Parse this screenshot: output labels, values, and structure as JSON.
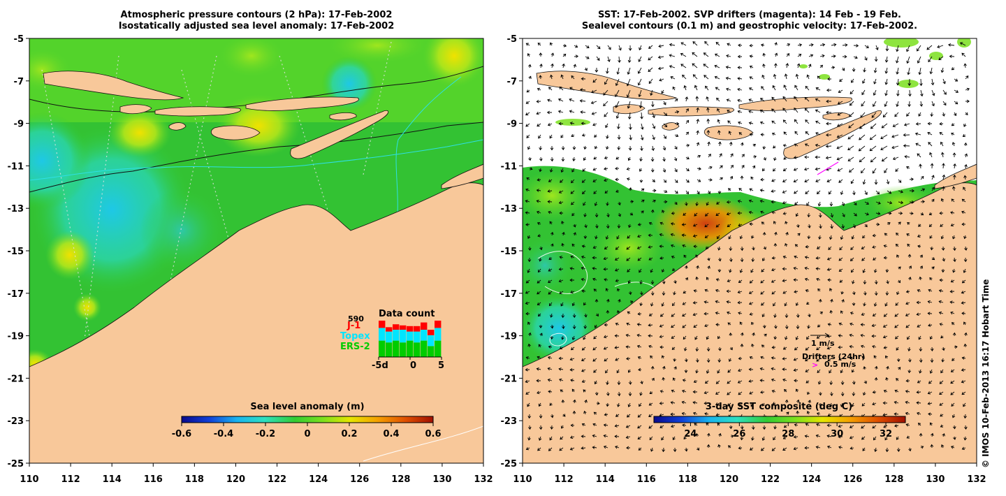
{
  "left_panel": {
    "title_line1": "Atmospheric pressure contours (2 hPa): 17-Feb-2002",
    "title_line2": "Isostatically adjusted sea level anomaly: 17-Feb-2002",
    "colorbar": {
      "title": "Sea level anomaly (m)",
      "ticks": [
        "-0.6",
        "-0.4",
        "-0.2",
        "0",
        "0.2",
        "0.4",
        "0.6"
      ],
      "range": [
        -0.6,
        0.6
      ],
      "colors": [
        "#0a0a8c",
        "#1040d8",
        "#19b4f0",
        "#2ee0c0",
        "#33cc33",
        "#7be01e",
        "#e6e600",
        "#f5a000",
        "#e05000",
        "#a01000"
      ]
    },
    "data_count": {
      "title": "Data count",
      "max_label": "590",
      "missions": [
        {
          "name": "J-1",
          "color": "#ff0000"
        },
        {
          "name": "Topex",
          "color": "#00e5ff"
        },
        {
          "name": "ERS-2",
          "color": "#00cc00"
        }
      ],
      "x_ticks": [
        "-5d",
        "0",
        "5"
      ],
      "bars": [
        {
          "ers2": 0.45,
          "topex": 0.35,
          "j1": 0.2
        },
        {
          "ers2": 0.4,
          "topex": 0.3,
          "j1": 0.12
        },
        {
          "ers2": 0.45,
          "topex": 0.3,
          "j1": 0.15
        },
        {
          "ers2": 0.4,
          "topex": 0.35,
          "j1": 0.12
        },
        {
          "ers2": 0.45,
          "topex": 0.25,
          "j1": 0.15
        },
        {
          "ers2": 0.4,
          "topex": 0.3,
          "j1": 0.15
        },
        {
          "ers2": 0.45,
          "topex": 0.3,
          "j1": 0.2
        },
        {
          "ers2": 0.3,
          "topex": 0.3,
          "j1": 0.15
        },
        {
          "ers2": 0.45,
          "topex": 0.35,
          "j1": 0.2
        }
      ]
    }
  },
  "right_panel": {
    "title_line1": "SST: 17-Feb-2002. SVP drifters (magenta): 14 Feb - 19 Feb.",
    "title_line2": "Sealevel contours (0.1 m) and geostrophic velocity: 17-Feb-2002.",
    "colorbar": {
      "title": "3-day SST composite (deg C)",
      "ticks": [
        "24",
        "26",
        "28",
        "30",
        "32"
      ],
      "range": [
        22.5,
        32.8
      ],
      "colors": [
        "#0a0a8c",
        "#1040d8",
        "#19b4f0",
        "#2ee0c0",
        "#33cc33",
        "#7be01e",
        "#e6e600",
        "#f5a000",
        "#e05000",
        "#a01000"
      ]
    },
    "velocity_legend": {
      "scale_label": "1 m/s",
      "drifters_label": "Drifters (24hr)",
      "drifter_scale_label": "0.5 m/s",
      "drifter_symbol": ">"
    }
  },
  "axes": {
    "lon_range": [
      110,
      132
    ],
    "lat_range": [
      -25,
      -5
    ],
    "lon_ticks": [
      "110",
      "112",
      "114",
      "116",
      "118",
      "120",
      "122",
      "124",
      "126",
      "128",
      "130",
      "132"
    ],
    "lat_ticks": [
      "-5",
      "-7",
      "-9",
      "-11",
      "-13",
      "-15",
      "-17",
      "-19",
      "-21",
      "-23",
      "-25"
    ]
  },
  "colors": {
    "land": "#f8c89a",
    "ocean_green": "#33c233",
    "no_data": "#ffffff"
  },
  "copyright": "© IMOS 10-Feb-2013 16:17 Hobart Time"
}
